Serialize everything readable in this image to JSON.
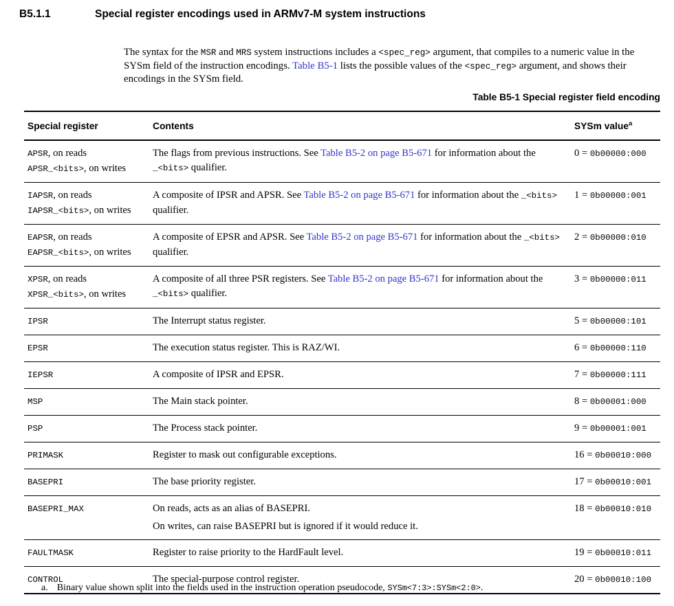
{
  "colors": {
    "link_blue": "#3333cc",
    "text": "#000000"
  },
  "section": {
    "number": "B5.1.1",
    "title": "Special register encodings used in ARMv7-M system instructions"
  },
  "intro_segments": [
    {
      "t": "text",
      "s": "The syntax for the "
    },
    {
      "t": "mono",
      "s": "MSR"
    },
    {
      "t": "text",
      "s": " and "
    },
    {
      "t": "mono",
      "s": "MRS"
    },
    {
      "t": "text",
      "s": " system instructions includes a "
    },
    {
      "t": "mono",
      "s": "<spec_reg>"
    },
    {
      "t": "text",
      "s": " argument, that compiles to a numeric value in the SYSm field of the instruction encodings. "
    },
    {
      "t": "link",
      "s": "Table B5-1"
    },
    {
      "t": "text",
      "s": " lists the possible values of the "
    },
    {
      "t": "mono",
      "s": "<spec_reg>"
    },
    {
      "t": "text",
      "s": " argument, and shows their encodings in the SYSm field."
    }
  ],
  "table": {
    "caption": "Table B5-1 Special register field encoding",
    "headers": {
      "register": "Special register",
      "contents": "Contents",
      "sysm": "SYSm value",
      "sysm_footnote_marker": "a"
    },
    "rows": [
      {
        "register_lines": [
          [
            {
              "t": "mono",
              "s": "APSR"
            },
            {
              "t": "text",
              "s": ", on reads"
            }
          ],
          [
            {
              "t": "mono",
              "s": "APSR_<bits>"
            },
            {
              "t": "text",
              "s": ", on writes"
            }
          ]
        ],
        "contents": [
          [
            {
              "t": "text",
              "s": "The flags from previous instructions. See "
            },
            {
              "t": "link",
              "s": "Table B5-2 on page B5-671"
            },
            {
              "t": "text",
              "s": " for information about the "
            },
            {
              "t": "mono",
              "s": "_<bits>"
            },
            {
              "t": "text",
              "s": " qualifier."
            }
          ]
        ],
        "value": [
          {
            "t": "text",
            "s": "0 = "
          },
          {
            "t": "mono",
            "s": "0b00000:000"
          }
        ]
      },
      {
        "register_lines": [
          [
            {
              "t": "mono",
              "s": "IAPSR"
            },
            {
              "t": "text",
              "s": ", on reads"
            }
          ],
          [
            {
              "t": "mono",
              "s": "IAPSR_<bits>"
            },
            {
              "t": "text",
              "s": ", on writes"
            }
          ]
        ],
        "contents": [
          [
            {
              "t": "text",
              "s": "A composite of IPSR and APSR. See "
            },
            {
              "t": "link",
              "s": "Table B5-2 on page B5-671"
            },
            {
              "t": "text",
              "s": " for information about the "
            },
            {
              "t": "mono",
              "s": "_<bits>"
            },
            {
              "t": "text",
              "s": " qualifier."
            }
          ]
        ],
        "value": [
          {
            "t": "text",
            "s": "1 = "
          },
          {
            "t": "mono",
            "s": "0b00000:001"
          }
        ]
      },
      {
        "register_lines": [
          [
            {
              "t": "mono",
              "s": "EAPSR"
            },
            {
              "t": "text",
              "s": ", on reads"
            }
          ],
          [
            {
              "t": "mono",
              "s": "EAPSR_<bits>"
            },
            {
              "t": "text",
              "s": ", on writes"
            }
          ]
        ],
        "contents": [
          [
            {
              "t": "text",
              "s": "A composite of EPSR and APSR. See "
            },
            {
              "t": "link",
              "s": "Table B5-2 on page B5-671"
            },
            {
              "t": "text",
              "s": " for information about the "
            },
            {
              "t": "mono",
              "s": "_<bits>"
            },
            {
              "t": "text",
              "s": " qualifier."
            }
          ]
        ],
        "value": [
          {
            "t": "text",
            "s": "2 = "
          },
          {
            "t": "mono",
            "s": "0b00000:010"
          }
        ]
      },
      {
        "register_lines": [
          [
            {
              "t": "mono",
              "s": "XPSR"
            },
            {
              "t": "text",
              "s": ", on reads"
            }
          ],
          [
            {
              "t": "mono",
              "s": "XPSR_<bits>"
            },
            {
              "t": "text",
              "s": ", on writes"
            }
          ]
        ],
        "contents": [
          [
            {
              "t": "text",
              "s": "A composite of all three PSR registers. See "
            },
            {
              "t": "link",
              "s": "Table B5-2 on page B5-671"
            },
            {
              "t": "text",
              "s": " for information about the "
            },
            {
              "t": "mono",
              "s": "_<bits>"
            },
            {
              "t": "text",
              "s": " qualifier."
            }
          ]
        ],
        "value": [
          {
            "t": "text",
            "s": "3 = "
          },
          {
            "t": "mono",
            "s": "0b00000:011"
          }
        ]
      },
      {
        "register_lines": [
          [
            {
              "t": "mono",
              "s": "IPSR"
            }
          ]
        ],
        "contents": [
          [
            {
              "t": "text",
              "s": "The Interrupt status register."
            }
          ]
        ],
        "value": [
          {
            "t": "text",
            "s": "5 = "
          },
          {
            "t": "mono",
            "s": "0b00000:101"
          }
        ]
      },
      {
        "register_lines": [
          [
            {
              "t": "mono",
              "s": "EPSR"
            }
          ]
        ],
        "contents": [
          [
            {
              "t": "text",
              "s": "The execution status register. This is RAZ/WI."
            }
          ]
        ],
        "value": [
          {
            "t": "text",
            "s": "6 = "
          },
          {
            "t": "mono",
            "s": "0b00000:110"
          }
        ]
      },
      {
        "register_lines": [
          [
            {
              "t": "mono",
              "s": "IEPSR"
            }
          ]
        ],
        "contents": [
          [
            {
              "t": "text",
              "s": "A composite of IPSR and EPSR."
            }
          ]
        ],
        "value": [
          {
            "t": "text",
            "s": "7 = "
          },
          {
            "t": "mono",
            "s": "0b00000:111"
          }
        ]
      },
      {
        "register_lines": [
          [
            {
              "t": "mono",
              "s": "MSP"
            }
          ]
        ],
        "contents": [
          [
            {
              "t": "text",
              "s": "The Main stack pointer."
            }
          ]
        ],
        "value": [
          {
            "t": "text",
            "s": "8 = "
          },
          {
            "t": "mono",
            "s": "0b00001:000"
          }
        ]
      },
      {
        "register_lines": [
          [
            {
              "t": "mono",
              "s": "PSP"
            }
          ]
        ],
        "contents": [
          [
            {
              "t": "text",
              "s": "The Process stack pointer."
            }
          ]
        ],
        "value": [
          {
            "t": "text",
            "s": "9 = "
          },
          {
            "t": "mono",
            "s": "0b00001:001"
          }
        ]
      },
      {
        "register_lines": [
          [
            {
              "t": "mono",
              "s": "PRIMASK"
            }
          ]
        ],
        "contents": [
          [
            {
              "t": "text",
              "s": "Register to mask out configurable exceptions."
            }
          ]
        ],
        "value": [
          {
            "t": "text",
            "s": "16 = "
          },
          {
            "t": "mono",
            "s": "0b00010:000"
          }
        ]
      },
      {
        "register_lines": [
          [
            {
              "t": "mono",
              "s": "BASEPRI"
            }
          ]
        ],
        "contents": [
          [
            {
              "t": "text",
              "s": "The base priority register."
            }
          ]
        ],
        "value": [
          {
            "t": "text",
            "s": "17 = "
          },
          {
            "t": "mono",
            "s": "0b00010:001"
          }
        ]
      },
      {
        "register_lines": [
          [
            {
              "t": "mono",
              "s": "BASEPRI_MAX"
            }
          ]
        ],
        "contents": [
          [
            {
              "t": "text",
              "s": "On reads, acts as an alias of BASEPRI."
            }
          ],
          [
            {
              "t": "text",
              "s": "On writes, can raise BASEPRI but is ignored if it would reduce it."
            }
          ]
        ],
        "value": [
          {
            "t": "text",
            "s": "18 = "
          },
          {
            "t": "mono",
            "s": "0b00010:010"
          }
        ]
      },
      {
        "register_lines": [
          [
            {
              "t": "mono",
              "s": "FAULTMASK"
            }
          ]
        ],
        "contents": [
          [
            {
              "t": "text",
              "s": "Register to raise priority to the HardFault level."
            }
          ]
        ],
        "value": [
          {
            "t": "text",
            "s": "19 = "
          },
          {
            "t": "mono",
            "s": "0b00010:011"
          }
        ]
      },
      {
        "register_lines": [
          [
            {
              "t": "mono",
              "s": "CONTROL"
            }
          ]
        ],
        "contents": [
          [
            {
              "t": "text",
              "s": "The special-purpose control register."
            }
          ]
        ],
        "value": [
          {
            "t": "text",
            "s": "20 = "
          },
          {
            "t": "mono",
            "s": "0b00010:100"
          }
        ]
      }
    ]
  },
  "footnote": {
    "marker": "a.",
    "segments": [
      {
        "t": "text",
        "s": "Binary value shown split into the fields used in the instruction operation pseudocode, "
      },
      {
        "t": "mono",
        "s": "SYSm<7:3>:SYSm<2:0>"
      },
      {
        "t": "text",
        "s": "."
      }
    ]
  }
}
